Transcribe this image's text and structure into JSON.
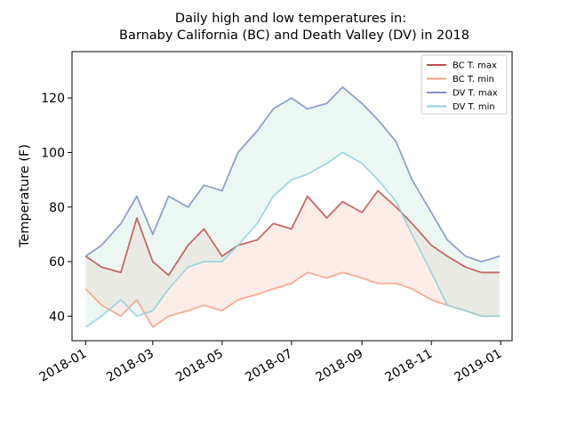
{
  "chart_data": {
    "type": "line",
    "title_line1": "Daily high and low temperatures in:",
    "title_line2": "Barnaby California (BC) and Death Valley (DV) in 2018",
    "xlabel": "",
    "ylabel": "Temperature (F)",
    "x_axis": "date",
    "xlim": [
      "2017-12-20",
      "2019-01-11"
    ],
    "ylim": [
      31,
      137
    ],
    "x_ticks": [
      "2018-01",
      "2018-03",
      "2018-05",
      "2018-07",
      "2018-09",
      "2018-11",
      "2019-01"
    ],
    "y_ticks": [
      40,
      60,
      80,
      100,
      120
    ],
    "grid": false,
    "legend_position": "top-right",
    "x": [
      "2018-01-01",
      "2018-01-15",
      "2018-02-01",
      "2018-02-15",
      "2018-03-01",
      "2018-03-15",
      "2018-04-01",
      "2018-04-15",
      "2018-05-01",
      "2018-05-15",
      "2018-06-01",
      "2018-06-15",
      "2018-07-01",
      "2018-07-15",
      "2018-08-01",
      "2018-08-15",
      "2018-09-01",
      "2018-09-15",
      "2018-10-01",
      "2018-10-15",
      "2018-11-01",
      "2018-11-15",
      "2018-12-01",
      "2018-12-15",
      "2018-12-31"
    ],
    "series": [
      {
        "name": "BC T. max",
        "color": "#c0504d",
        "values": [
          62,
          58,
          56,
          76,
          60,
          55,
          66,
          72,
          62,
          66,
          68,
          74,
          72,
          84,
          76,
          82,
          78,
          86,
          80,
          74,
          66,
          62,
          58,
          56,
          56
        ]
      },
      {
        "name": "BC T. min",
        "color": "#f4a082",
        "values": [
          50,
          44,
          40,
          46,
          36,
          40,
          42,
          44,
          42,
          46,
          48,
          50,
          52,
          56,
          54,
          56,
          54,
          52,
          52,
          50,
          46,
          44,
          42,
          40,
          40
        ]
      },
      {
        "name": "DV T. max",
        "color": "#7f8fc2",
        "values": [
          62,
          66,
          74,
          84,
          70,
          84,
          80,
          88,
          86,
          100,
          108,
          116,
          120,
          116,
          118,
          124,
          118,
          112,
          104,
          90,
          78,
          68,
          62,
          60,
          62
        ]
      },
      {
        "name": "DV T. min",
        "color": "#8ed4dc",
        "values": [
          36,
          40,
          46,
          40,
          42,
          50,
          58,
          60,
          60,
          66,
          74,
          84,
          90,
          92,
          96,
          100,
          96,
          90,
          82,
          70,
          56,
          44,
          42,
          40,
          40
        ]
      }
    ],
    "fills": [
      {
        "between": [
          "BC T. min",
          "BC T. max"
        ],
        "color": "#f7c9bd"
      },
      {
        "between": [
          "DV T. min",
          "DV T. max"
        ],
        "color": "#c9e8de"
      }
    ]
  }
}
